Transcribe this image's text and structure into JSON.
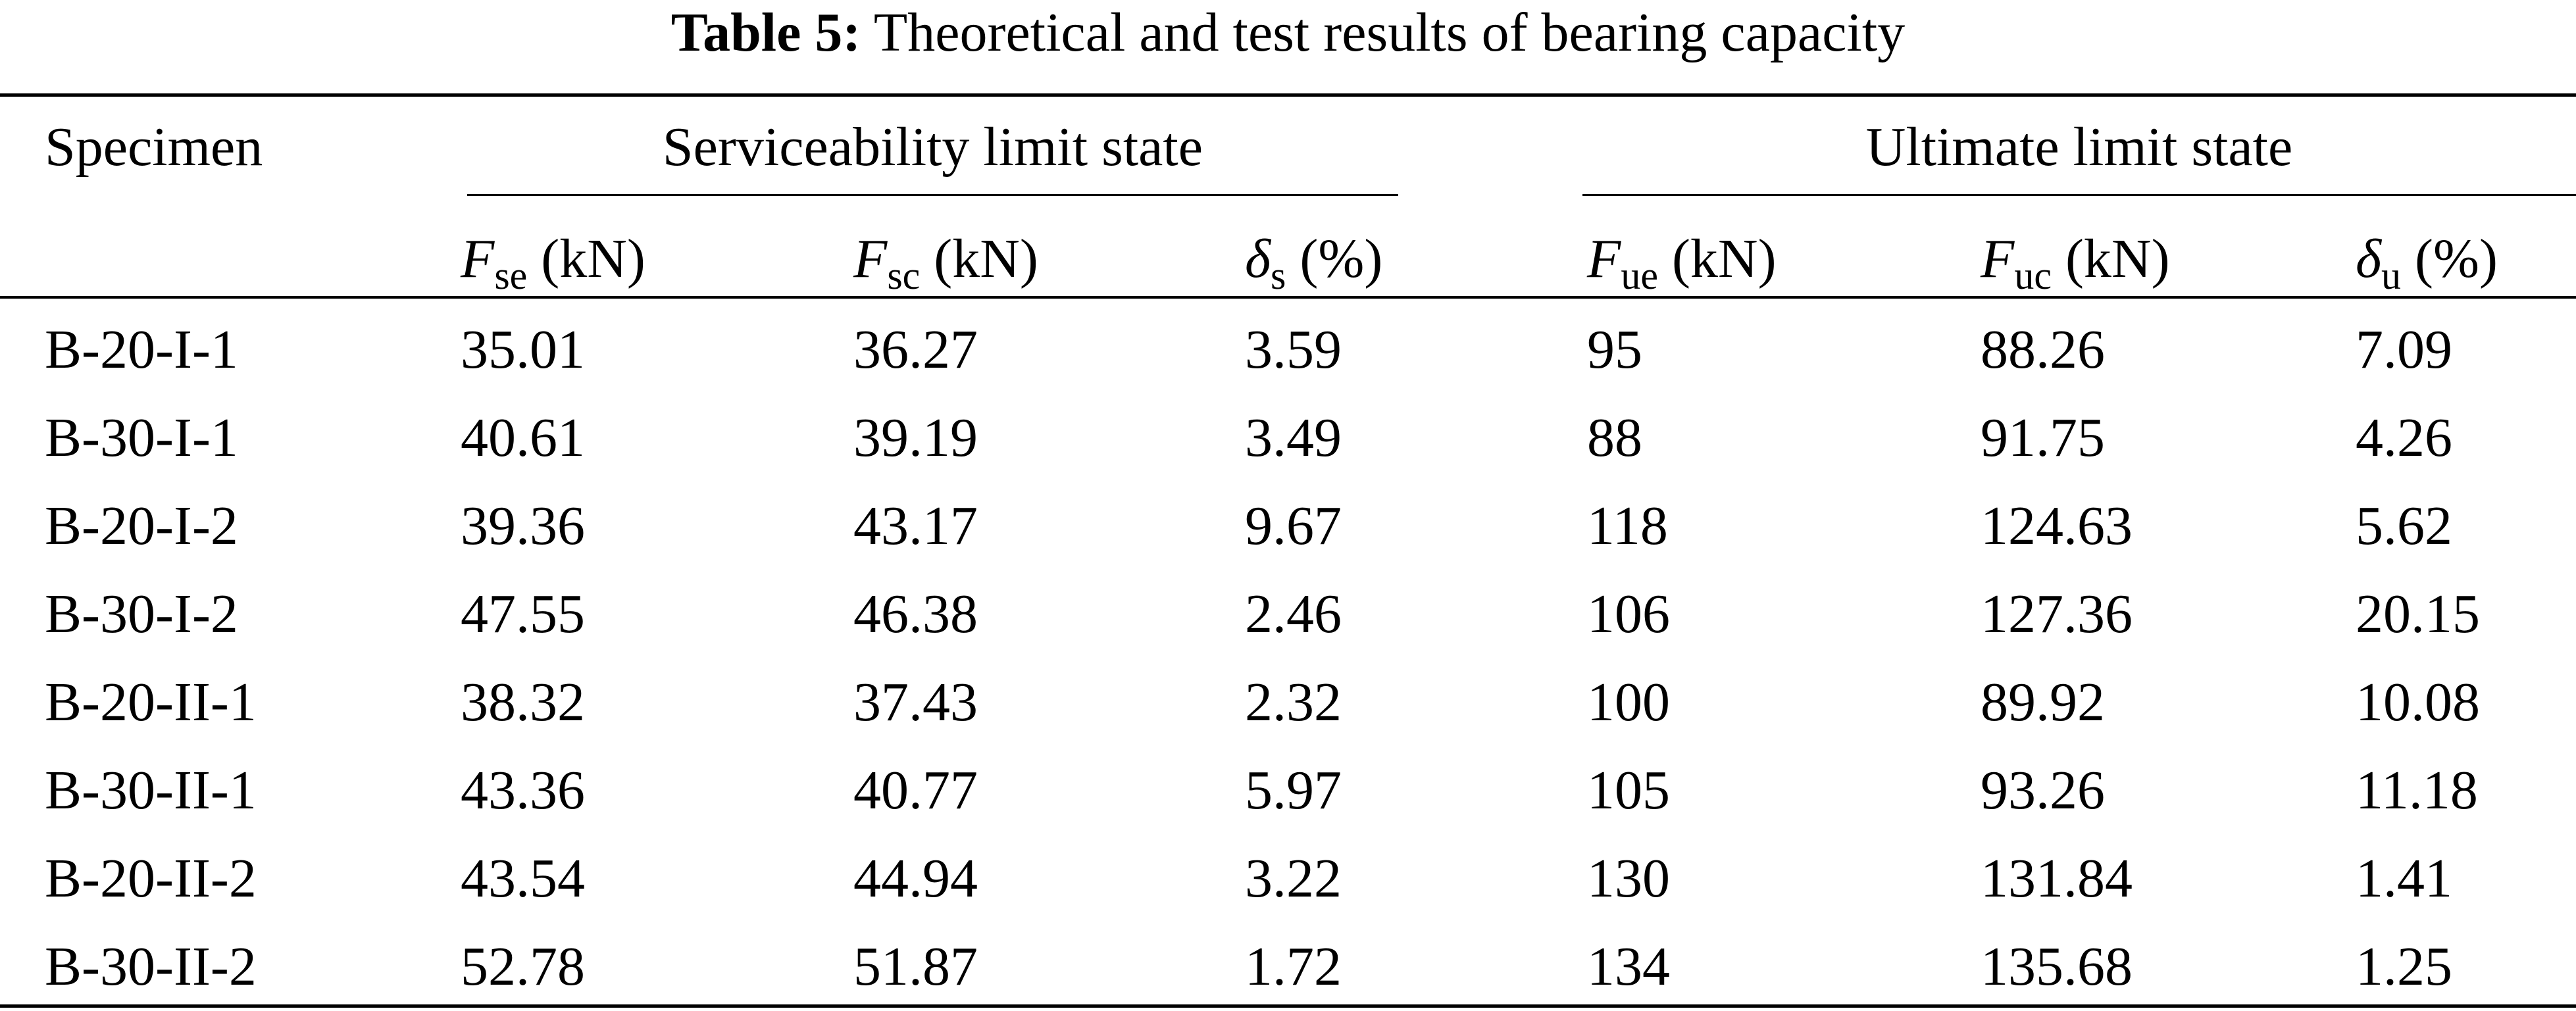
{
  "caption": {
    "label": "Table 5:",
    "text": "Theoretical and test results of bearing capacity"
  },
  "header": {
    "specimen": "Specimen",
    "serviceability": "Serviceability limit state",
    "ultimate": "Ultimate limit state",
    "columns": [
      {
        "symbol": "F",
        "subscript": "se",
        "unit": " (kN)"
      },
      {
        "symbol": "F",
        "subscript": "sc",
        "unit": " (kN)"
      },
      {
        "symbol": "δ",
        "subscript": "s",
        "unit": " (%)"
      },
      {
        "symbol": "F",
        "subscript": "ue",
        "unit": " (kN)"
      },
      {
        "symbol": "F",
        "subscript": "uc",
        "unit": " (kN)"
      },
      {
        "symbol": "δ",
        "subscript": "u",
        "unit": " (%)"
      }
    ]
  },
  "rows": [
    [
      "B-20-I-1",
      "35.01",
      "36.27",
      "3.59",
      "95",
      "88.26",
      "7.09"
    ],
    [
      "B-30-I-1",
      "40.61",
      "39.19",
      "3.49",
      "88",
      "91.75",
      "4.26"
    ],
    [
      "B-20-I-2",
      "39.36",
      "43.17",
      "9.67",
      "118",
      "124.63",
      "5.62"
    ],
    [
      "B-30-I-2",
      "47.55",
      "46.38",
      "2.46",
      "106",
      "127.36",
      "20.15"
    ],
    [
      "B-20-II-1",
      "38.32",
      "37.43",
      "2.32",
      "100",
      "89.92",
      "10.08"
    ],
    [
      "B-30-II-1",
      "43.36",
      "40.77",
      "5.97",
      "105",
      "93.26",
      "11.18"
    ],
    [
      "B-20-II-2",
      "43.54",
      "44.94",
      "3.22",
      "130",
      "131.84",
      "1.41"
    ],
    [
      "B-30-II-2",
      "52.78",
      "51.87",
      "1.72",
      "134",
      "135.68",
      "1.25"
    ]
  ]
}
